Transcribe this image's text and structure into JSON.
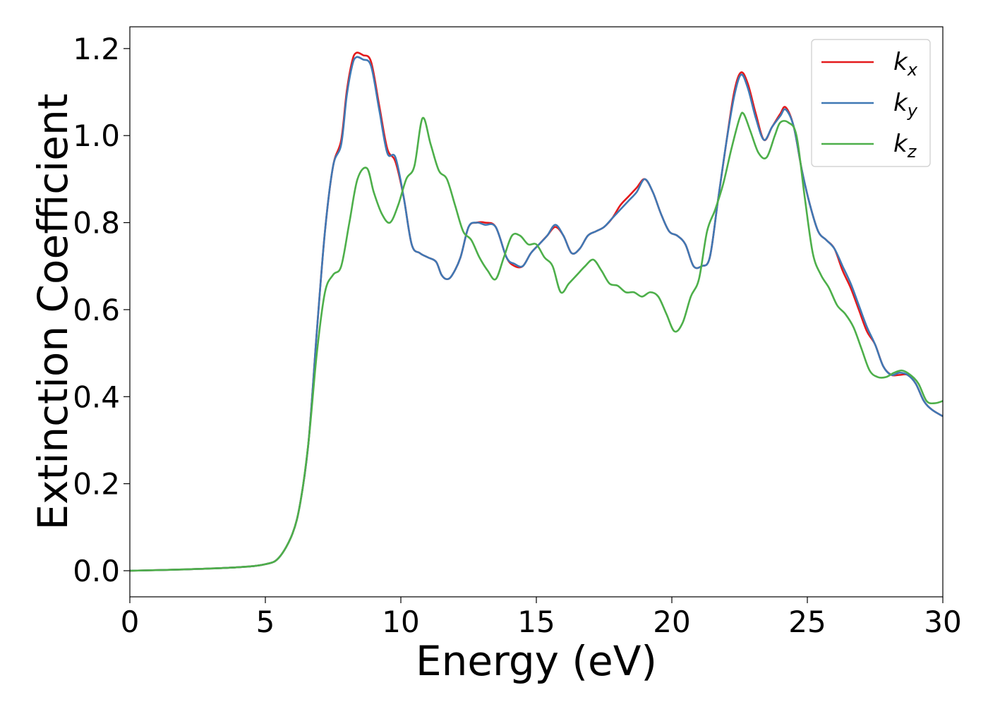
{
  "chart_data": {
    "type": "line",
    "title": "",
    "xlabel": "Energy (eV)",
    "ylabel": "Extinction Coefficient",
    "xlim": [
      0,
      30
    ],
    "ylim": [
      -0.06,
      1.25
    ],
    "xticks": [
      0,
      5,
      10,
      15,
      20,
      25,
      30
    ],
    "xtick_labels": [
      "0",
      "5",
      "10",
      "15",
      "20",
      "25",
      "30"
    ],
    "yticks": [
      0.0,
      0.2,
      0.4,
      0.6,
      0.8,
      1.0,
      1.2
    ],
    "ytick_labels": [
      "0.0",
      "0.2",
      "0.4",
      "0.6",
      "0.8",
      "1.0",
      "1.2"
    ],
    "grid": false,
    "legend_position": "top-right",
    "series": [
      {
        "name": "k_x",
        "legend_base": "k",
        "legend_sub": "x",
        "color": "#e41a1c",
        "x": [
          0,
          2,
          4,
          5,
          5.5,
          6,
          6.3,
          6.6,
          6.9,
          7.2,
          7.5,
          7.8,
          8.0,
          8.2,
          8.35,
          8.6,
          8.9,
          9.2,
          9.5,
          9.8,
          10.1,
          10.4,
          10.7,
          11.0,
          11.3,
          11.5,
          11.7,
          11.9,
          12.2,
          12.5,
          12.8,
          13.1,
          13.5,
          13.9,
          14.2,
          14.5,
          14.8,
          15.1,
          15.4,
          15.7,
          16.0,
          16.3,
          16.6,
          16.9,
          17.2,
          17.5,
          17.8,
          18.1,
          18.4,
          18.7,
          19.0,
          19.3,
          19.6,
          19.9,
          20.2,
          20.5,
          20.8,
          21.1,
          21.4,
          21.7,
          22.0,
          22.3,
          22.55,
          22.8,
          23.1,
          23.4,
          23.7,
          24.0,
          24.2,
          24.5,
          24.8,
          25.1,
          25.4,
          25.7,
          26.0,
          26.3,
          26.6,
          26.9,
          27.2,
          27.5,
          27.8,
          28.1,
          28.4,
          28.7,
          29.0,
          29.3,
          29.6,
          30.0
        ],
        "y": [
          0.0,
          0.003,
          0.008,
          0.015,
          0.03,
          0.085,
          0.16,
          0.3,
          0.55,
          0.78,
          0.93,
          0.99,
          1.1,
          1.17,
          1.19,
          1.185,
          1.17,
          1.07,
          0.97,
          0.94,
          0.86,
          0.75,
          0.73,
          0.72,
          0.71,
          0.68,
          0.67,
          0.68,
          0.72,
          0.79,
          0.8,
          0.8,
          0.79,
          0.72,
          0.7,
          0.7,
          0.73,
          0.75,
          0.77,
          0.79,
          0.77,
          0.73,
          0.74,
          0.77,
          0.78,
          0.79,
          0.81,
          0.84,
          0.86,
          0.88,
          0.9,
          0.87,
          0.82,
          0.78,
          0.77,
          0.75,
          0.7,
          0.7,
          0.72,
          0.85,
          0.98,
          1.1,
          1.145,
          1.12,
          1.05,
          0.99,
          1.02,
          1.05,
          1.065,
          1.02,
          0.92,
          0.84,
          0.78,
          0.76,
          0.74,
          0.69,
          0.65,
          0.6,
          0.55,
          0.52,
          0.47,
          0.45,
          0.45,
          0.45,
          0.43,
          0.39,
          0.37,
          0.355
        ]
      },
      {
        "name": "k_y",
        "legend_base": "k",
        "legend_sub": "y",
        "color": "#3f78b4",
        "x": [
          0,
          2,
          4,
          5,
          5.5,
          6,
          6.3,
          6.6,
          6.9,
          7.2,
          7.5,
          7.8,
          8.0,
          8.2,
          8.35,
          8.6,
          8.9,
          9.2,
          9.5,
          9.8,
          10.1,
          10.4,
          10.7,
          11.0,
          11.3,
          11.5,
          11.7,
          11.9,
          12.2,
          12.5,
          12.8,
          13.1,
          13.5,
          13.9,
          14.2,
          14.5,
          14.8,
          15.1,
          15.4,
          15.7,
          16.0,
          16.3,
          16.6,
          16.9,
          17.2,
          17.5,
          17.8,
          18.1,
          18.4,
          18.7,
          19.0,
          19.3,
          19.6,
          19.9,
          20.2,
          20.5,
          20.8,
          21.1,
          21.4,
          21.7,
          22.0,
          22.3,
          22.55,
          22.8,
          23.1,
          23.4,
          23.7,
          24.0,
          24.2,
          24.5,
          24.8,
          25.1,
          25.4,
          25.7,
          26.0,
          26.3,
          26.6,
          26.9,
          27.2,
          27.5,
          27.8,
          28.1,
          28.4,
          28.7,
          29.0,
          29.3,
          29.6,
          30.0
        ],
        "y": [
          0.0,
          0.003,
          0.008,
          0.015,
          0.03,
          0.085,
          0.16,
          0.3,
          0.55,
          0.78,
          0.93,
          0.98,
          1.09,
          1.16,
          1.18,
          1.175,
          1.16,
          1.06,
          0.96,
          0.95,
          0.86,
          0.75,
          0.73,
          0.72,
          0.71,
          0.68,
          0.67,
          0.68,
          0.72,
          0.79,
          0.8,
          0.795,
          0.79,
          0.72,
          0.705,
          0.7,
          0.73,
          0.75,
          0.77,
          0.795,
          0.77,
          0.73,
          0.74,
          0.77,
          0.78,
          0.79,
          0.81,
          0.83,
          0.85,
          0.87,
          0.9,
          0.87,
          0.82,
          0.78,
          0.77,
          0.75,
          0.7,
          0.7,
          0.72,
          0.85,
          0.98,
          1.09,
          1.14,
          1.11,
          1.04,
          0.99,
          1.02,
          1.045,
          1.06,
          1.02,
          0.92,
          0.84,
          0.78,
          0.76,
          0.74,
          0.7,
          0.66,
          0.61,
          0.56,
          0.52,
          0.47,
          0.45,
          0.455,
          0.45,
          0.43,
          0.39,
          0.37,
          0.355
        ]
      },
      {
        "name": "k_z",
        "legend_base": "k",
        "legend_sub": "z",
        "color": "#4daf4a",
        "x": [
          0,
          2,
          4,
          5,
          5.5,
          6,
          6.3,
          6.6,
          6.9,
          7.2,
          7.5,
          7.8,
          8.1,
          8.4,
          8.75,
          9.0,
          9.3,
          9.6,
          9.9,
          10.2,
          10.5,
          10.8,
          11.1,
          11.4,
          11.7,
          12.0,
          12.3,
          12.6,
          12.9,
          13.2,
          13.5,
          13.8,
          14.1,
          14.4,
          14.7,
          15.0,
          15.3,
          15.6,
          15.9,
          16.2,
          16.5,
          16.8,
          17.1,
          17.4,
          17.7,
          18.0,
          18.3,
          18.6,
          18.9,
          19.2,
          19.5,
          19.8,
          20.1,
          20.4,
          20.7,
          21.0,
          21.3,
          21.6,
          21.9,
          22.2,
          22.5,
          22.65,
          22.9,
          23.2,
          23.5,
          23.8,
          24.0,
          24.3,
          24.6,
          24.9,
          25.2,
          25.5,
          25.8,
          26.1,
          26.4,
          26.7,
          27.0,
          27.3,
          27.6,
          27.9,
          28.2,
          28.5,
          28.8,
          29.1,
          29.4,
          29.7,
          30.0
        ],
        "y": [
          0.0,
          0.003,
          0.008,
          0.015,
          0.03,
          0.085,
          0.16,
          0.3,
          0.5,
          0.64,
          0.68,
          0.7,
          0.8,
          0.9,
          0.925,
          0.87,
          0.82,
          0.8,
          0.84,
          0.9,
          0.93,
          1.04,
          0.98,
          0.92,
          0.9,
          0.84,
          0.78,
          0.76,
          0.72,
          0.69,
          0.67,
          0.72,
          0.77,
          0.77,
          0.75,
          0.75,
          0.72,
          0.7,
          0.64,
          0.66,
          0.68,
          0.7,
          0.715,
          0.69,
          0.66,
          0.655,
          0.64,
          0.64,
          0.63,
          0.64,
          0.63,
          0.59,
          0.55,
          0.57,
          0.63,
          0.67,
          0.78,
          0.83,
          0.89,
          0.97,
          1.04,
          1.05,
          1.01,
          0.96,
          0.95,
          1.0,
          1.03,
          1.03,
          1.0,
          0.86,
          0.73,
          0.68,
          0.65,
          0.61,
          0.59,
          0.56,
          0.51,
          0.46,
          0.445,
          0.445,
          0.455,
          0.46,
          0.45,
          0.43,
          0.39,
          0.385,
          0.39
        ]
      }
    ]
  }
}
